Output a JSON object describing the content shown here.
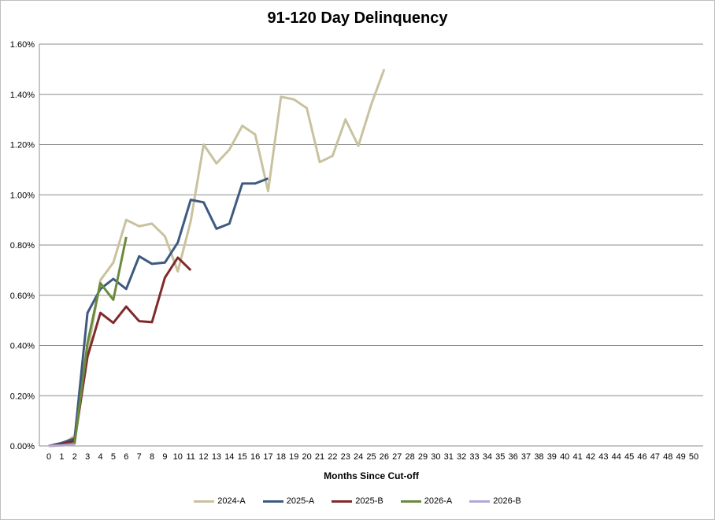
{
  "chart_data": {
    "type": "line",
    "title": "91-120 Day Delinquency",
    "xlabel": "Months Since Cut-off",
    "ylabel": "",
    "xlim": [
      0,
      50
    ],
    "ylim": [
      0,
      1.6
    ],
    "y_tick_labels": [
      "0.00%",
      "0.20%",
      "0.40%",
      "0.60%",
      "0.80%",
      "1.00%",
      "1.20%",
      "1.40%",
      "1.60%"
    ],
    "y_ticks": [
      0,
      0.2,
      0.4,
      0.6,
      0.8,
      1.0,
      1.2,
      1.4,
      1.6
    ],
    "x_ticks": [
      0,
      1,
      2,
      3,
      4,
      5,
      6,
      7,
      8,
      9,
      10,
      11,
      12,
      13,
      14,
      15,
      16,
      17,
      18,
      19,
      20,
      21,
      22,
      23,
      24,
      25,
      26,
      27,
      28,
      29,
      30,
      31,
      32,
      33,
      34,
      35,
      36,
      37,
      38,
      39,
      40,
      41,
      42,
      43,
      44,
      45,
      46,
      47,
      48,
      49,
      50
    ],
    "grid": "horizontal",
    "legend_position": "bottom",
    "series": [
      {
        "name": "2024-A",
        "color": "#c9c29f",
        "x": [
          0,
          1,
          2,
          3,
          4,
          5,
          6,
          7,
          8,
          9,
          10,
          11,
          12,
          13,
          14,
          15,
          16,
          17,
          18,
          19,
          20,
          21,
          22,
          23,
          24,
          25,
          26
        ],
        "values": [
          0,
          0.005,
          0.04,
          0.37,
          0.66,
          0.73,
          0.9,
          0.875,
          0.885,
          0.835,
          0.695,
          0.895,
          1.2,
          1.125,
          1.18,
          1.275,
          1.24,
          1.015,
          1.39,
          1.38,
          1.345,
          1.13,
          1.155,
          1.3,
          1.195,
          1.36,
          1.5
        ]
      },
      {
        "name": "2025-A",
        "color": "#3d5a80",
        "x": [
          0,
          1,
          2,
          3,
          4,
          5,
          6,
          7,
          8,
          9,
          10,
          11,
          12,
          13,
          14,
          15,
          16,
          17
        ],
        "values": [
          0,
          0.012,
          0.03,
          0.53,
          0.625,
          0.665,
          0.625,
          0.755,
          0.725,
          0.73,
          0.81,
          0.98,
          0.97,
          0.865,
          0.885,
          1.045,
          1.045,
          1.065
        ]
      },
      {
        "name": "2025-B",
        "color": "#7f2b2b",
        "x": [
          0,
          1,
          2,
          3,
          4,
          5,
          6,
          7,
          8,
          9,
          10,
          11
        ],
        "values": [
          0,
          0.008,
          0.02,
          0.355,
          0.53,
          0.49,
          0.555,
          0.497,
          0.493,
          0.67,
          0.75,
          0.7
        ]
      },
      {
        "name": "2026-A",
        "color": "#6b8a3e",
        "x": [
          0,
          1,
          2,
          3,
          4,
          5,
          6
        ],
        "values": [
          0,
          0.003,
          0.01,
          0.41,
          0.648,
          0.582,
          0.832
        ]
      },
      {
        "name": "2026-B",
        "color": "#b4a7d6",
        "x": [
          0,
          1,
          2
        ],
        "values": [
          0,
          0.002,
          0.005
        ]
      }
    ]
  }
}
